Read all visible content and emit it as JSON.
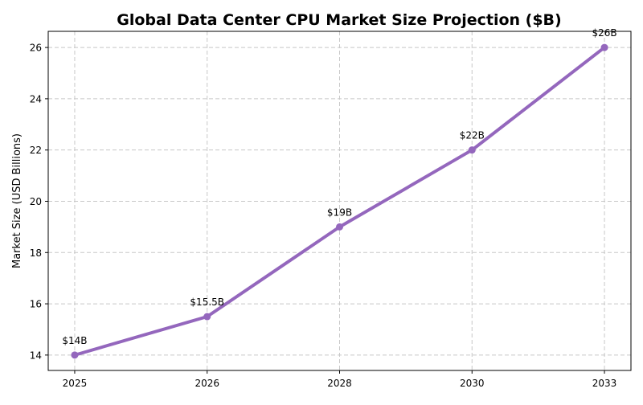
{
  "chart_data": {
    "type": "line",
    "title": "Global Data Center CPU Market Size Projection ($B)",
    "xlabel": "",
    "ylabel": "Market Size (USD Billions)",
    "categories": [
      "2025",
      "2026",
      "2028",
      "2030",
      "2033"
    ],
    "values": [
      14,
      15.5,
      19,
      22,
      26
    ],
    "data_labels": [
      "$14B",
      "$15.5B",
      "$19B",
      "$22B",
      "$26B"
    ],
    "yticks": [
      14,
      16,
      18,
      20,
      22,
      24,
      26
    ],
    "ylim": [
      13.4,
      26.63
    ],
    "grid": true,
    "line_color": "#9467bd",
    "marker": "circle"
  }
}
